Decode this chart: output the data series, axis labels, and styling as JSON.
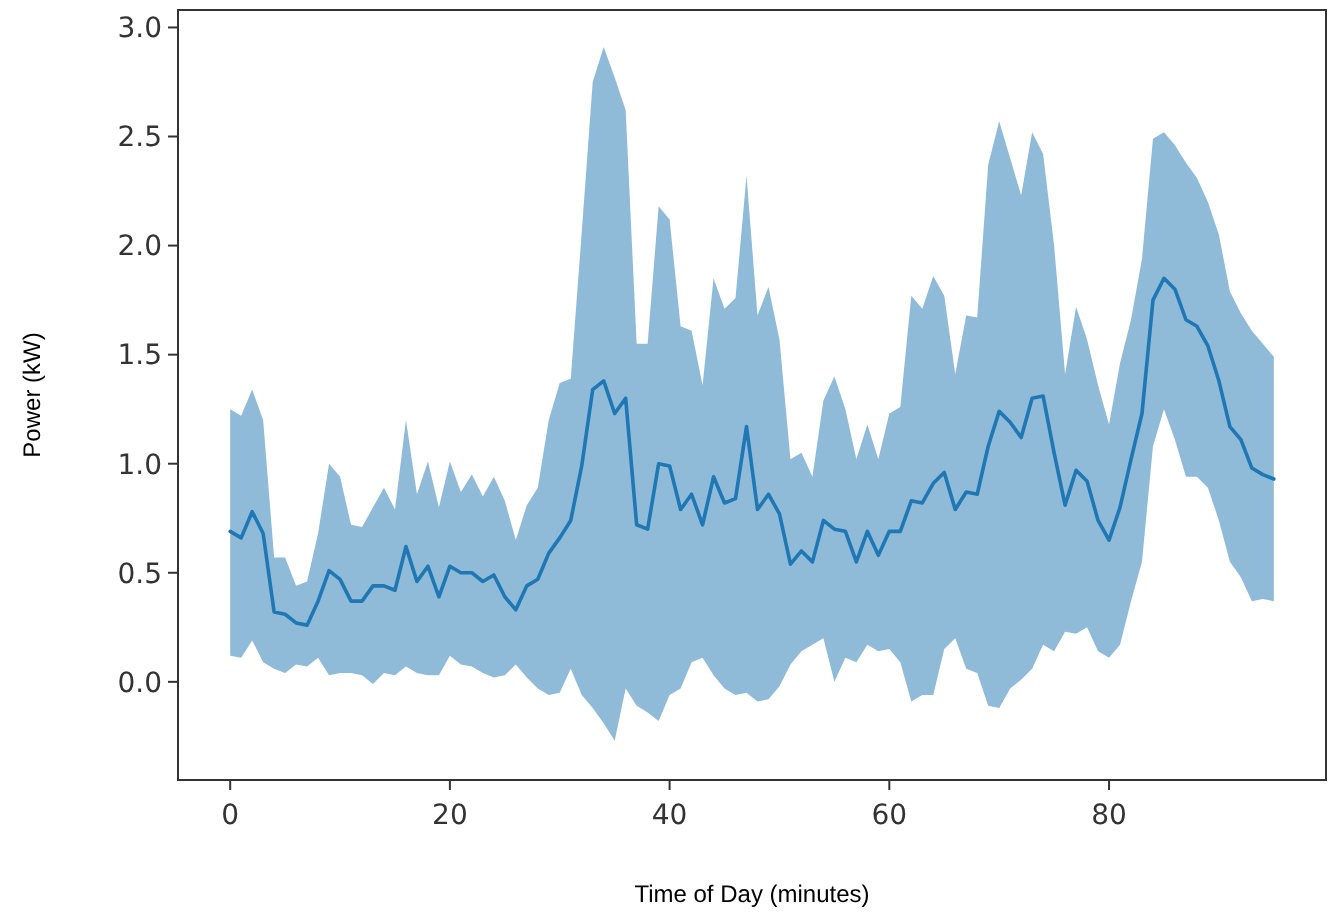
{
  "chart_data": {
    "type": "line",
    "xlabel": "Time of Day (minutes)",
    "ylabel": "Power (kW)",
    "x": [
      0,
      1,
      2,
      3,
      4,
      5,
      6,
      7,
      8,
      9,
      10,
      11,
      12,
      13,
      14,
      15,
      16,
      17,
      18,
      19,
      20,
      21,
      22,
      23,
      24,
      25,
      26,
      27,
      28,
      29,
      30,
      31,
      32,
      33,
      34,
      35,
      36,
      37,
      38,
      39,
      40,
      41,
      42,
      43,
      44,
      45,
      46,
      47,
      48,
      49,
      50,
      51,
      52,
      53,
      54,
      55,
      56,
      57,
      58,
      59,
      60,
      61,
      62,
      63,
      64,
      65,
      66,
      67,
      68,
      69,
      70,
      71,
      72,
      73,
      74,
      75,
      76,
      77,
      78,
      79,
      80,
      81,
      82,
      83,
      84,
      85,
      86,
      87,
      88,
      89,
      90,
      91,
      92,
      93,
      94,
      95
    ],
    "series": [
      {
        "color": "#1f77b4",
        "values": [
          0.69,
          0.66,
          0.78,
          0.68,
          0.32,
          0.31,
          0.27,
          0.26,
          0.37,
          0.51,
          0.47,
          0.37,
          0.37,
          0.44,
          0.44,
          0.42,
          0.62,
          0.46,
          0.53,
          0.39,
          0.53,
          0.5,
          0.5,
          0.46,
          0.49,
          0.39,
          0.33,
          0.44,
          0.47,
          0.59,
          0.66,
          0.74,
          0.99,
          1.34,
          1.38,
          1.23,
          1.3,
          0.72,
          0.7,
          1.0,
          0.99,
          0.79,
          0.86,
          0.72,
          0.94,
          0.82,
          0.84,
          1.17,
          0.79,
          0.86,
          0.77,
          0.54,
          0.6,
          0.55,
          0.74,
          0.7,
          0.69,
          0.55,
          0.69,
          0.58,
          0.69,
          0.69,
          0.83,
          0.82,
          0.91,
          0.96,
          0.79,
          0.87,
          0.86,
          1.08,
          1.24,
          1.19,
          1.12,
          1.3,
          1.31,
          1.05,
          0.81,
          0.97,
          0.92,
          0.74,
          0.65,
          0.8,
          1.02,
          1.23,
          1.75,
          1.85,
          1.8,
          1.66,
          1.63,
          1.54,
          1.38,
          1.17,
          1.11,
          0.98,
          0.95,
          0.93
        ],
        "upper": [
          1.25,
          1.22,
          1.34,
          1.2,
          0.57,
          0.57,
          0.44,
          0.46,
          0.68,
          1.0,
          0.94,
          0.72,
          0.71,
          0.8,
          0.89,
          0.79,
          1.2,
          0.86,
          1.01,
          0.8,
          1.01,
          0.87,
          0.95,
          0.85,
          0.94,
          0.83,
          0.65,
          0.81,
          0.89,
          1.2,
          1.37,
          1.39,
          2.06,
          2.75,
          2.91,
          2.77,
          2.62,
          1.55,
          1.55,
          2.18,
          2.12,
          1.63,
          1.61,
          1.36,
          1.85,
          1.71,
          1.76,
          2.32,
          1.68,
          1.81,
          1.57,
          1.02,
          1.05,
          0.94,
          1.29,
          1.4,
          1.25,
          1.02,
          1.18,
          1.02,
          1.23,
          1.26,
          1.77,
          1.71,
          1.86,
          1.77,
          1.41,
          1.68,
          1.67,
          2.37,
          2.57,
          2.4,
          2.23,
          2.52,
          2.42,
          2.0,
          1.41,
          1.72,
          1.57,
          1.36,
          1.18,
          1.46,
          1.66,
          1.94,
          2.49,
          2.52,
          2.46,
          2.38,
          2.31,
          2.2,
          2.05,
          1.79,
          1.69,
          1.61,
          1.55,
          1.49
        ],
        "lower": [
          0.12,
          0.11,
          0.19,
          0.09,
          0.06,
          0.04,
          0.08,
          0.07,
          0.11,
          0.03,
          0.04,
          0.04,
          0.03,
          -0.01,
          0.04,
          0.03,
          0.07,
          0.04,
          0.03,
          0.03,
          0.12,
          0.08,
          0.07,
          0.04,
          0.02,
          0.03,
          0.08,
          0.02,
          -0.03,
          -0.06,
          -0.05,
          0.06,
          -0.06,
          -0.12,
          -0.19,
          -0.27,
          -0.03,
          -0.11,
          -0.14,
          -0.18,
          -0.06,
          -0.03,
          0.09,
          0.11,
          0.03,
          -0.03,
          -0.06,
          -0.05,
          -0.09,
          -0.08,
          -0.02,
          0.08,
          0.14,
          0.17,
          0.2,
          0.0,
          0.11,
          0.09,
          0.17,
          0.14,
          0.15,
          0.09,
          -0.09,
          -0.06,
          -0.06,
          0.15,
          0.2,
          0.06,
          0.04,
          -0.11,
          -0.12,
          -0.03,
          0.01,
          0.06,
          0.17,
          0.14,
          0.23,
          0.22,
          0.25,
          0.14,
          0.11,
          0.17,
          0.37,
          0.55,
          1.08,
          1.25,
          1.11,
          0.94,
          0.94,
          0.89,
          0.74,
          0.55,
          0.48,
          0.37,
          0.38,
          0.37
        ]
      }
    ],
    "xlim": [
      -4.75,
      99.75
    ],
    "xticks": [
      0,
      20,
      40,
      60,
      80
    ],
    "ylim": [
      -0.45,
      3.08
    ],
    "yticks": [
      {
        "value": 0,
        "label": "0.0"
      },
      {
        "value": 0.5,
        "label": "0.5"
      },
      {
        "value": 1,
        "label": "1.0"
      },
      {
        "value": 1.5,
        "label": "1.5"
      },
      {
        "value": 2,
        "label": "2.0"
      },
      {
        "value": 2.5,
        "label": "2.5"
      },
      {
        "value": 3,
        "label": "3.0"
      }
    ],
    "line_style": "solid"
  }
}
